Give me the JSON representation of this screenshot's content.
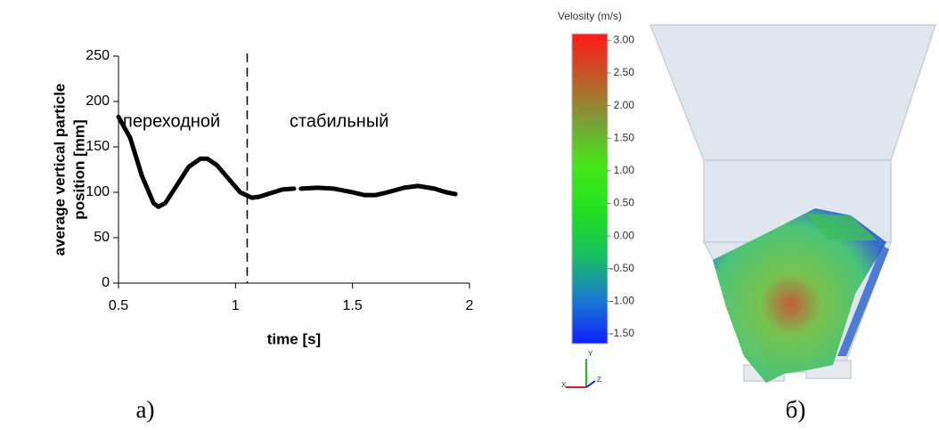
{
  "chart_data": [
    {
      "type": "line",
      "ylabel": [
        "average vertical particle",
        "position [mm]"
      ],
      "xlabel": "time [s]",
      "annotations": [
        "переходной",
        "стабильный"
      ],
      "vline_x": 1.05,
      "xlim": [
        0.5,
        2
      ],
      "xticks": [
        0.5,
        1,
        1.5,
        2
      ],
      "ylim": [
        0,
        250
      ],
      "yticks": [
        0,
        50,
        100,
        150,
        200,
        250
      ],
      "color": "#000000",
      "x": [
        0.5,
        0.55,
        0.6,
        0.65,
        0.67,
        0.7,
        0.75,
        0.8,
        0.85,
        0.88,
        0.92,
        0.97,
        1.02,
        1.07,
        1.1,
        1.15,
        1.2,
        1.25,
        1.265,
        1.28,
        1.35,
        1.42,
        1.5,
        1.55,
        1.6,
        1.65,
        1.72,
        1.78,
        1.85,
        1.9,
        1.94
      ],
      "values": [
        183,
        160,
        118,
        88,
        84,
        88,
        108,
        128,
        137,
        137,
        130,
        115,
        100,
        94,
        95,
        99,
        103,
        104,
        null,
        104,
        105,
        104,
        100,
        97,
        97,
        100,
        105,
        107,
        104,
        100,
        98
      ]
    },
    {
      "type": "colorbar",
      "title": "Velosity (m/s)",
      "ylim": [
        -1.65,
        3.1
      ],
      "yticks": [
        {
          "value": 3,
          "label": "3.00"
        },
        {
          "value": 2.5,
          "label": "2.50"
        },
        {
          "value": 2,
          "label": "2.00"
        },
        {
          "value": 1.5,
          "label": "1.50"
        },
        {
          "value": 1,
          "label": "1.00"
        },
        {
          "value": 0.5,
          "label": "0.50"
        },
        {
          "value": 0,
          "label": "0.00"
        },
        {
          "value": -0.5,
          "label": "-0.50"
        },
        {
          "value": -1,
          "label": "-1.00"
        },
        {
          "value": -1.5,
          "label": "-1.50"
        }
      ],
      "colors": [
        "#1020ff",
        "#1a7ad0",
        "#18c060",
        "#22e020",
        "#44e818",
        "#7aa038",
        "#c05a28",
        "#ff1a1a"
      ],
      "triad": [
        "X",
        "Y",
        "Z"
      ]
    }
  ],
  "panels": [
    "а)",
    "б)"
  ]
}
